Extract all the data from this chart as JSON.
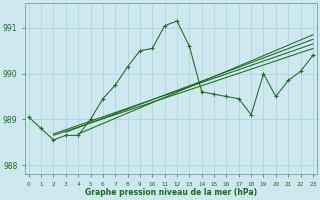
{
  "title": "Graphe pression niveau de la mer (hPa)",
  "x_hours": [
    0,
    1,
    2,
    3,
    4,
    5,
    6,
    7,
    8,
    9,
    10,
    11,
    12,
    13,
    14,
    15,
    16,
    17,
    18,
    19,
    20,
    21,
    22,
    23
  ],
  "main_line": [
    989.05,
    988.8,
    988.55,
    988.65,
    988.65,
    989.0,
    989.45,
    989.75,
    990.15,
    990.5,
    990.55,
    991.05,
    991.15,
    990.6,
    989.6,
    989.55,
    989.5,
    989.45,
    989.1,
    990.0,
    989.5,
    989.85,
    990.05,
    990.4
  ],
  "trend_line1_x": [
    2,
    23
  ],
  "trend_line1_y": [
    988.65,
    990.55
  ],
  "trend_line2_x": [
    2,
    23
  ],
  "trend_line2_y": [
    988.68,
    990.65
  ],
  "trend_line3_x": [
    3,
    23
  ],
  "trend_line3_y": [
    988.72,
    990.75
  ],
  "trend_line4_x": [
    4,
    23
  ],
  "trend_line4_y": [
    988.68,
    990.85
  ],
  "bg_color": "#cfe8ef",
  "line_color": "#1a6b1a",
  "grid_color": "#a8d8e0",
  "text_color": "#1a6b1a",
  "ylabel_ticks": [
    988,
    989,
    990,
    991
  ],
  "ylim": [
    987.8,
    991.55
  ],
  "xlim": [
    -0.3,
    23.3
  ]
}
